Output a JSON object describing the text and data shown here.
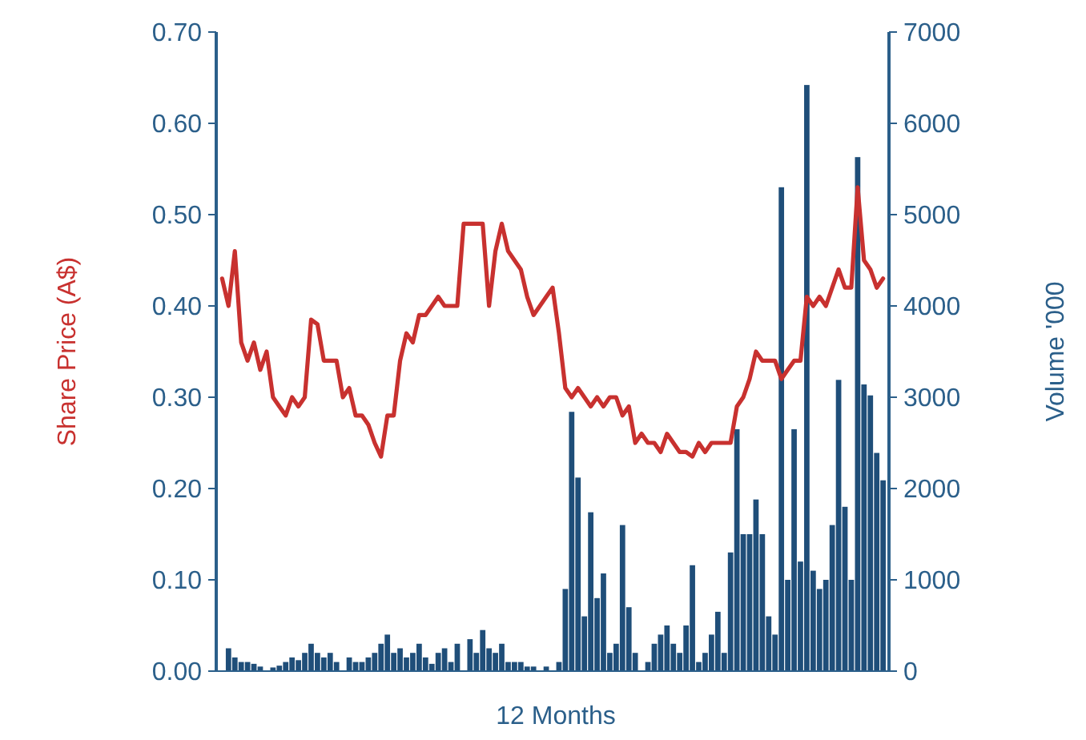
{
  "chart_data": {
    "type": "line",
    "xlabel": "12 Months",
    "ylabel": "Share Price (A$)",
    "y2label": "Volume '000",
    "categories": [
      null,
      null,
      null,
      null,
      null,
      null,
      null,
      null,
      null,
      null,
      null,
      null,
      null,
      null,
      null,
      null,
      null,
      null,
      null,
      null,
      null,
      null,
      null,
      null,
      null,
      null,
      null,
      null,
      null,
      null,
      null,
      null,
      null,
      null,
      null,
      null,
      null,
      null,
      null,
      null,
      null,
      null,
      null,
      null,
      null,
      null,
      null,
      null,
      null,
      null,
      null,
      null,
      null,
      null,
      null,
      null,
      null,
      null,
      null,
      null,
      null,
      null,
      null,
      null,
      null,
      null,
      null,
      null,
      null,
      null,
      null,
      null,
      null,
      null,
      null,
      null,
      null,
      null,
      null,
      null,
      null,
      null,
      null,
      null,
      null,
      null,
      null,
      null,
      null,
      null,
      null,
      null,
      null,
      null,
      null,
      null,
      null,
      null,
      null,
      null,
      null,
      null,
      null,
      null,
      null
    ],
    "ylim": [
      0,
      0.7
    ],
    "yticks": [
      {
        "value": 0,
        "label": "0.00"
      },
      {
        "value": 0.1,
        "label": "0.10"
      },
      {
        "value": 0.2,
        "label": "0.20"
      },
      {
        "value": 0.3,
        "label": "0.30"
      },
      {
        "value": 0.4,
        "label": "0.40"
      },
      {
        "value": 0.5,
        "label": "0.50"
      },
      {
        "value": 0.6,
        "label": "0.60"
      },
      {
        "value": 0.7,
        "label": "0.70"
      }
    ],
    "y2lim": [
      0,
      7000
    ],
    "y2ticks": [
      0,
      1000,
      2000,
      3000,
      4000,
      5000,
      6000,
      7000
    ],
    "series": [
      {
        "type": "bar",
        "axis": "y2",
        "color": "#1f4e79",
        "values": [
          0,
          250,
          150,
          100,
          100,
          80,
          50,
          0,
          40,
          60,
          100,
          150,
          120,
          200,
          300,
          200,
          150,
          200,
          100,
          0,
          150,
          100,
          100,
          150,
          200,
          300,
          400,
          200,
          250,
          150,
          200,
          300,
          150,
          80,
          200,
          250,
          100,
          300,
          0,
          350,
          200,
          450,
          250,
          200,
          300,
          100,
          100,
          100,
          50,
          50,
          0,
          50,
          0,
          100,
          900,
          2840,
          2120,
          600,
          1740,
          800,
          1070,
          200,
          300,
          1600,
          700,
          200,
          0,
          100,
          300,
          400,
          500,
          300,
          200,
          500,
          1160,
          100,
          200,
          400,
          650,
          200,
          1300,
          2650,
          1500,
          1500,
          1880,
          1500,
          600,
          400,
          5300,
          1000,
          2650,
          1200,
          6420,
          1100,
          900,
          1000,
          1600,
          3190,
          1800,
          1000,
          5630,
          3140,
          3020,
          2390,
          2090
        ]
      },
      {
        "axis": "y",
        "color": "#c8312f",
        "values": [
          0.43,
          0.4,
          0.46,
          0.36,
          0.34,
          0.36,
          0.33,
          0.35,
          0.3,
          0.29,
          0.28,
          0.3,
          0.29,
          0.3,
          0.385,
          0.38,
          0.34,
          0.34,
          0.34,
          0.3,
          0.31,
          0.28,
          0.28,
          0.27,
          0.25,
          0.235,
          0.28,
          0.28,
          0.34,
          0.37,
          0.36,
          0.39,
          0.39,
          0.4,
          0.41,
          0.4,
          0.4,
          0.4,
          0.49,
          0.49,
          0.49,
          0.49,
          0.4,
          0.46,
          0.49,
          0.46,
          0.45,
          0.44,
          0.41,
          0.39,
          0.4,
          0.41,
          0.42,
          0.37,
          0.31,
          0.3,
          0.31,
          0.3,
          0.29,
          0.3,
          0.29,
          0.3,
          0.3,
          0.28,
          0.29,
          0.25,
          0.26,
          0.25,
          0.25,
          0.24,
          0.26,
          0.25,
          0.24,
          0.24,
          0.235,
          0.25,
          0.24,
          0.25,
          0.25,
          0.25,
          0.25,
          0.29,
          0.3,
          0.32,
          0.35,
          0.34,
          0.34,
          0.34,
          0.32,
          0.33,
          0.34,
          0.34,
          0.41,
          0.4,
          0.41,
          0.4,
          0.42,
          0.44,
          0.42,
          0.42,
          0.53,
          0.45,
          0.44,
          0.42,
          0.43
        ]
      }
    ]
  }
}
